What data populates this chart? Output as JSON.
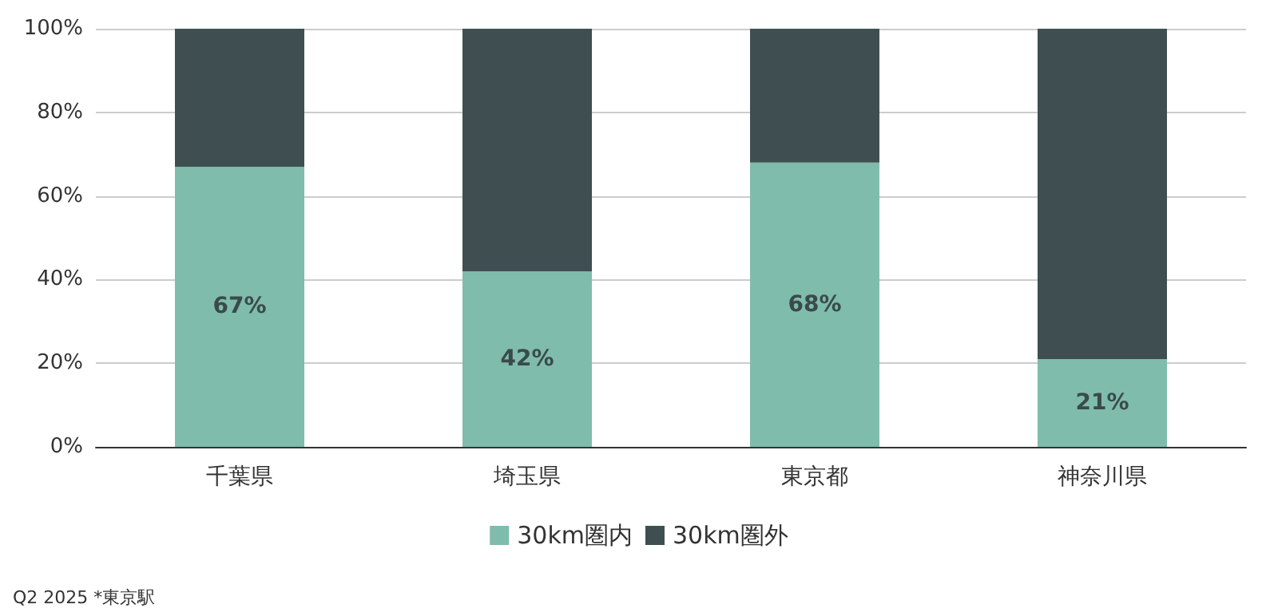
{
  "chart_data": {
    "type": "bar",
    "stacked": true,
    "categories": [
      "千葉県",
      "埼玉県",
      "東京都",
      "神奈川県"
    ],
    "series": [
      {
        "name": "30km圏内",
        "color": "#7fbcab",
        "values": [
          67,
          42,
          68,
          21
        ],
        "value_labels": [
          "67%",
          "42%",
          "68%",
          "21%"
        ]
      },
      {
        "name": "30km圏外",
        "color": "#3f4f51",
        "values": [
          33,
          58,
          32,
          79
        ]
      }
    ],
    "ylim": [
      0,
      100
    ],
    "yticks": [
      {
        "value": 0,
        "label": "0%"
      },
      {
        "value": 20,
        "label": "20%"
      },
      {
        "value": 40,
        "label": "40%"
      },
      {
        "value": 60,
        "label": "60%"
      },
      {
        "value": 80,
        "label": "80%"
      },
      {
        "value": 100,
        "label": "100%"
      }
    ],
    "grid": "y",
    "legend": "bottom",
    "annotations": [
      "Q2 2025 *東京駅"
    ]
  }
}
